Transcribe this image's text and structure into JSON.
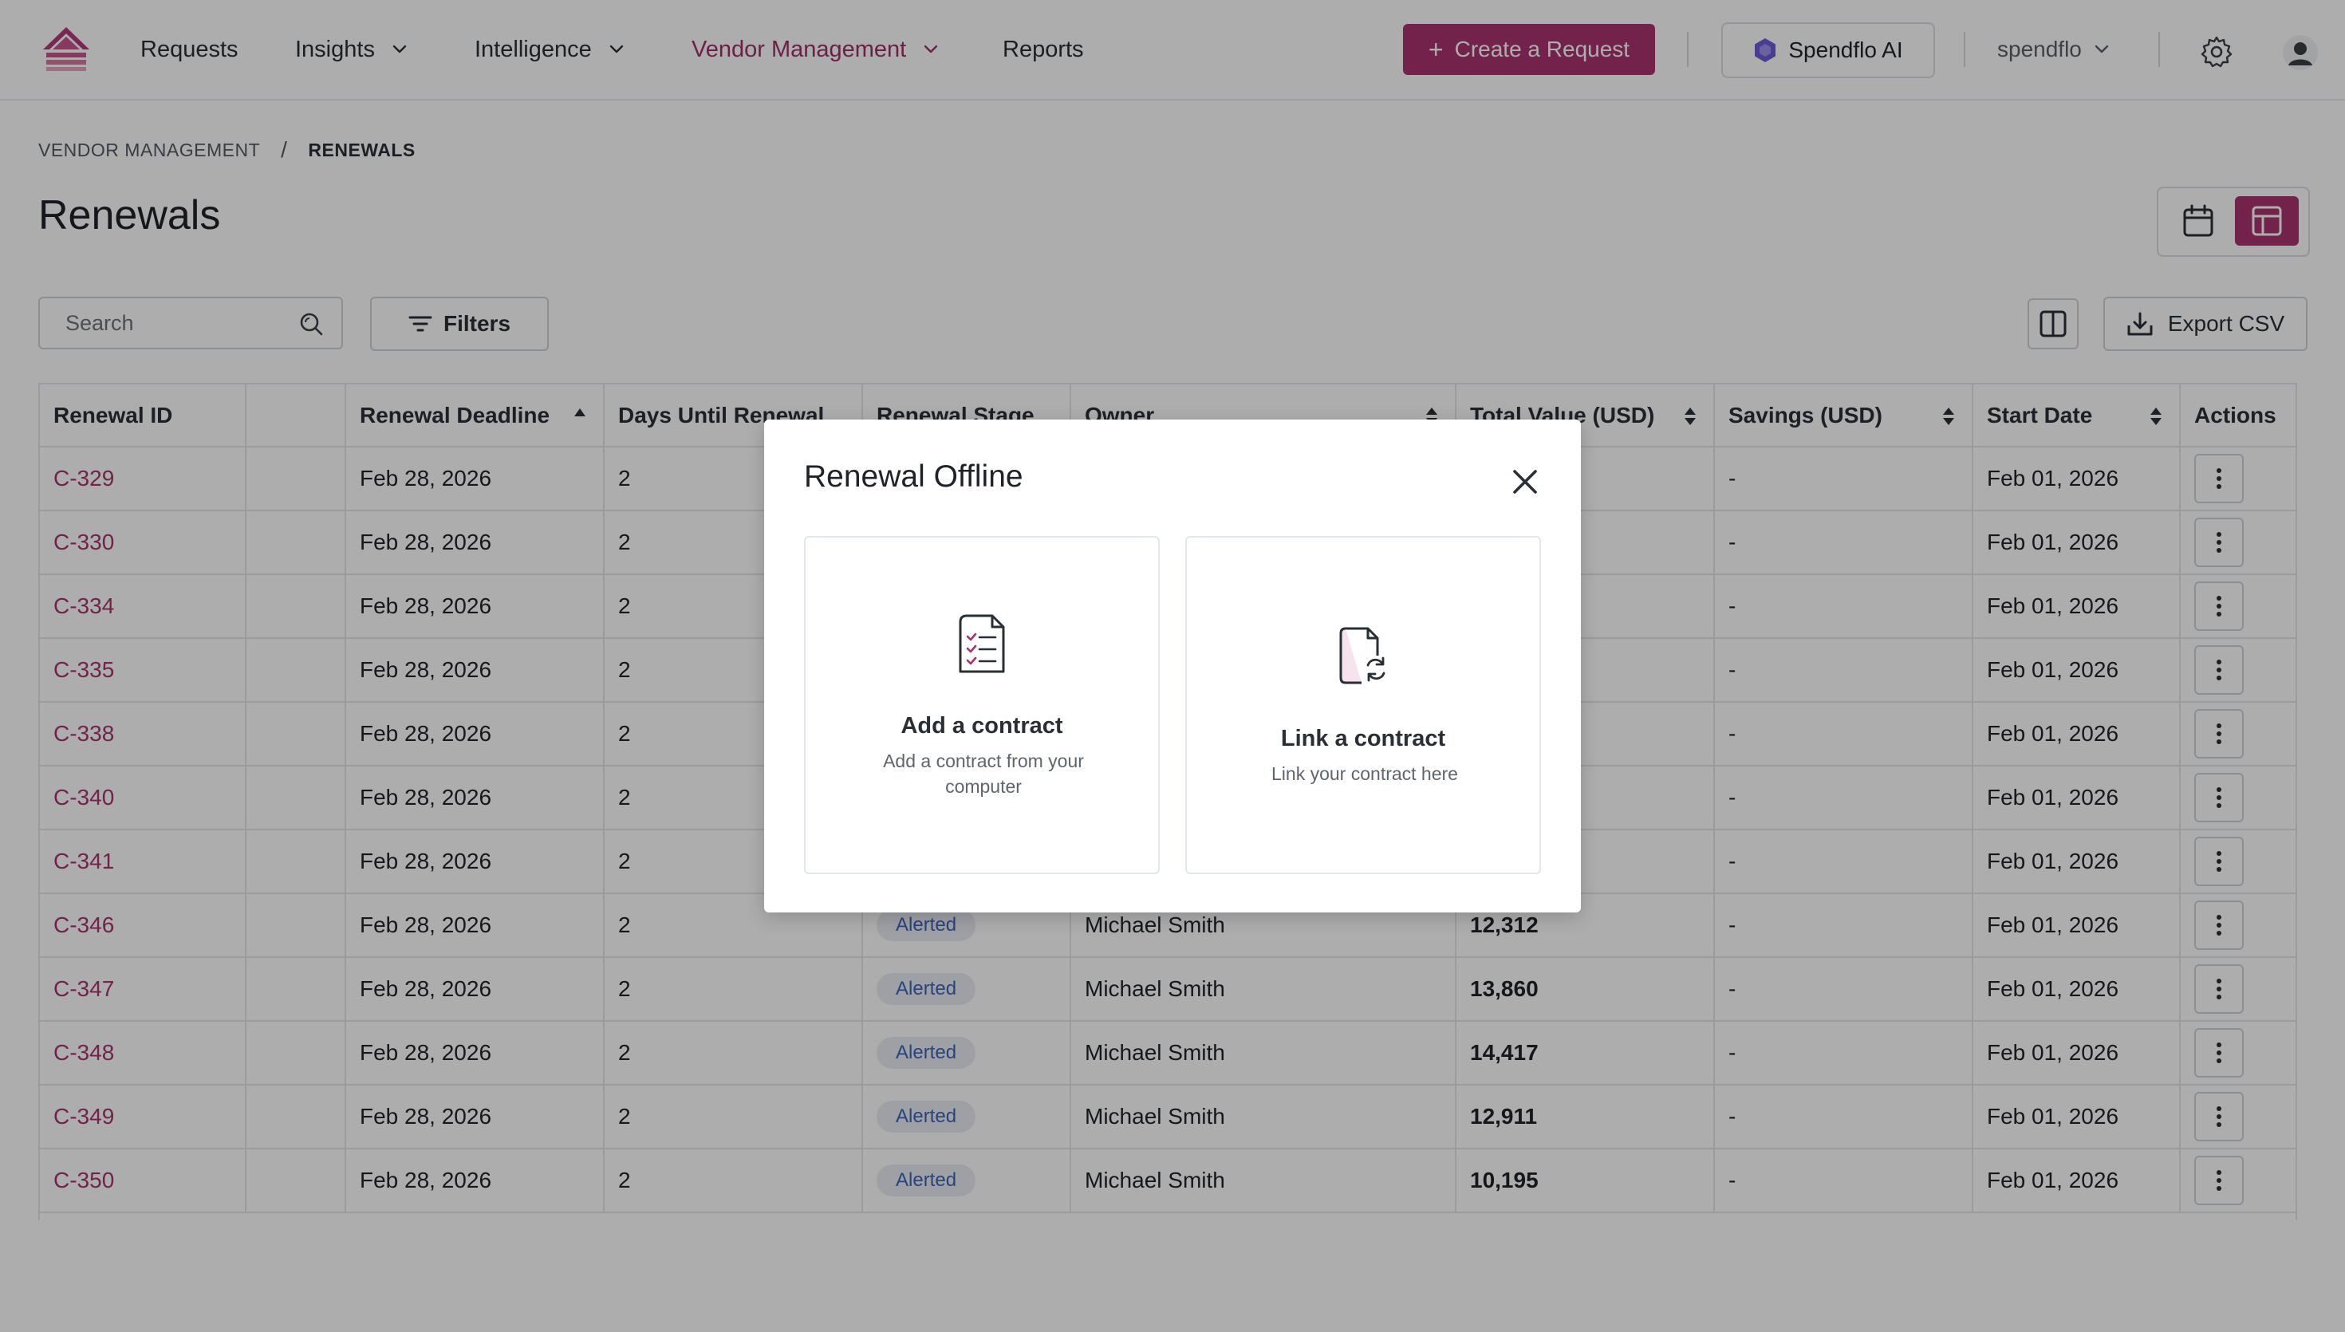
{
  "nav": {
    "items": [
      {
        "label": "Requests",
        "has_dropdown": false,
        "active": false
      },
      {
        "label": "Insights",
        "has_dropdown": true,
        "active": false
      },
      {
        "label": "Intelligence",
        "has_dropdown": true,
        "active": false
      },
      {
        "label": "Vendor Management",
        "has_dropdown": true,
        "active": true
      },
      {
        "label": "Reports",
        "has_dropdown": false,
        "active": false
      }
    ],
    "create_request_label": "Create a Request",
    "ai_button_label": "Spendflo AI",
    "org_label": "spendflo"
  },
  "breadcrumb": {
    "parent": "VENDOR MANAGEMENT",
    "separator": "/",
    "current": "RENEWALS"
  },
  "page": {
    "title": "Renewals",
    "search_placeholder": "Search",
    "filters_label": "Filters",
    "export_label": "Export CSV"
  },
  "table": {
    "columns": [
      "Renewal ID",
      "",
      "Renewal Deadline",
      "Days Until Renewal",
      "Renewal Stage",
      "Owner",
      "Total Value (USD)",
      "Savings (USD)",
      "Start Date",
      "Actions"
    ],
    "sorted_column": "Renewal Deadline",
    "sort_direction": "ascending",
    "rows": [
      {
        "id": "C-329",
        "deadline": "Feb 28, 2026",
        "days": "2",
        "stage": "",
        "owner": "",
        "total": "",
        "savings": "-",
        "start": "Feb 01, 2026"
      },
      {
        "id": "C-330",
        "deadline": "Feb 28, 2026",
        "days": "2",
        "stage": "",
        "owner": "",
        "total": "",
        "savings": "-",
        "start": "Feb 01, 2026"
      },
      {
        "id": "C-334",
        "deadline": "Feb 28, 2026",
        "days": "2",
        "stage": "",
        "owner": "",
        "total": "",
        "savings": "-",
        "start": "Feb 01, 2026"
      },
      {
        "id": "C-335",
        "deadline": "Feb 28, 2026",
        "days": "2",
        "stage": "",
        "owner": "",
        "total": "",
        "savings": "-",
        "start": "Feb 01, 2026"
      },
      {
        "id": "C-338",
        "deadline": "Feb 28, 2026",
        "days": "2",
        "stage": "",
        "owner": "",
        "total": "",
        "savings": "-",
        "start": "Feb 01, 2026"
      },
      {
        "id": "C-340",
        "deadline": "Feb 28, 2026",
        "days": "2",
        "stage": "",
        "owner": "",
        "total": "",
        "savings": "-",
        "start": "Feb 01, 2026"
      },
      {
        "id": "C-341",
        "deadline": "Feb 28, 2026",
        "days": "2",
        "stage": "",
        "owner": "",
        "total": "",
        "savings": "-",
        "start": "Feb 01, 2026"
      },
      {
        "id": "C-346",
        "deadline": "Feb 28, 2026",
        "days": "2",
        "stage": "Alerted",
        "owner": "Michael Smith",
        "total": "12,312",
        "savings": "-",
        "start": "Feb 01, 2026"
      },
      {
        "id": "C-347",
        "deadline": "Feb 28, 2026",
        "days": "2",
        "stage": "Alerted",
        "owner": "Michael Smith",
        "total": "13,860",
        "savings": "-",
        "start": "Feb 01, 2026"
      },
      {
        "id": "C-348",
        "deadline": "Feb 28, 2026",
        "days": "2",
        "stage": "Alerted",
        "owner": "Michael Smith",
        "total": "14,417",
        "savings": "-",
        "start": "Feb 01, 2026"
      },
      {
        "id": "C-349",
        "deadline": "Feb 28, 2026",
        "days": "2",
        "stage": "Alerted",
        "owner": "Michael Smith",
        "total": "12,911",
        "savings": "-",
        "start": "Feb 01, 2026"
      },
      {
        "id": "C-350",
        "deadline": "Feb 28, 2026",
        "days": "2",
        "stage": "Alerted",
        "owner": "Michael Smith",
        "total": "10,195",
        "savings": "-",
        "start": "Feb 01, 2026"
      }
    ]
  },
  "modal": {
    "title": "Renewal Offline",
    "options": [
      {
        "title": "Add a contract",
        "description": "Add a contract from your computer",
        "icon": "document-checklist-icon"
      },
      {
        "title": "Link a contract",
        "description": "Link your contract here",
        "icon": "document-sync-icon"
      }
    ]
  },
  "colors": {
    "brand": "#a8336f",
    "link": "#a8336f",
    "badge_text": "#3d63b8",
    "badge_bg": "#e9ecf5",
    "overlay": "rgba(0,0,0,0.32)"
  }
}
